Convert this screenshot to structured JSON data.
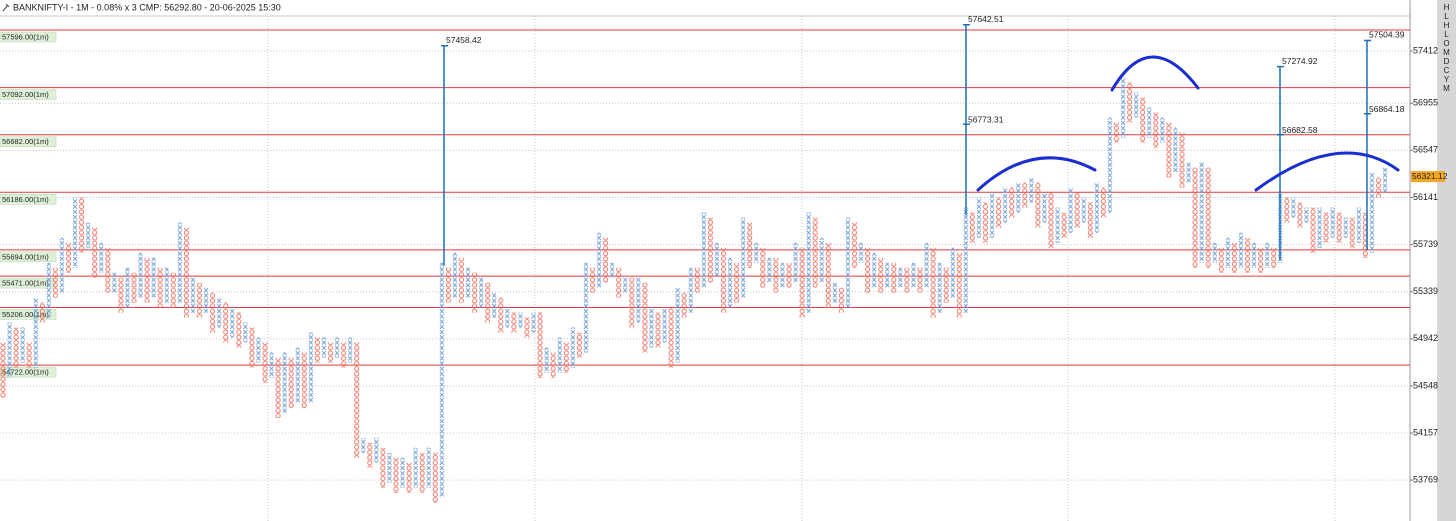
{
  "chart_data": {
    "type": "point_and_figure",
    "title": "BANKNIFTY-I - 1M - 0.08% x 3 CMP: 56292.80 - 20-06-2025 15:30",
    "log_scale": true,
    "ylim": [
      53434,
      57755
    ],
    "yticks": [
      57412,
      56955,
      56547,
      56141,
      55739,
      55339,
      54942,
      54548,
      54157,
      53769
    ],
    "grid": true,
    "x_color": "#6f9fd8",
    "o_color": "#f26b5b",
    "level_color": "#e23a3a",
    "count_color": "#1b6fb5",
    "current_price": 56321.12,
    "current_color": "#f5a623",
    "side_letters": [
      "H",
      "L",
      "H",
      "L",
      "O",
      "M",
      "D",
      "C",
      "Y",
      "M"
    ],
    "levels": [
      {
        "value": 57596,
        "label": "57596.00(1m)"
      },
      {
        "value": 57092,
        "label": "57092.00(1m)"
      },
      {
        "value": 56682,
        "label": "56682.00(1m)"
      },
      {
        "value": 56186,
        "label": "56186.00(1m)"
      },
      {
        "value": 55694,
        "label": "55694.00(1m)"
      },
      {
        "value": 55471,
        "label": "55471.00(1m)"
      },
      {
        "value": 55206,
        "label": "55206.00(1m)"
      },
      {
        "value": 54722,
        "label": "54722.00(1m)"
      }
    ],
    "counts": [
      {
        "from": 55562,
        "targets": [
          57458.42
        ]
      },
      {
        "from": 55990,
        "targets": [
          57642.51,
          56773.31
        ]
      },
      {
        "from": 55605,
        "targets": [
          57274.92,
          56682.58
        ]
      },
      {
        "from": 55690,
        "targets": [
          57504.39,
          56864.18
        ]
      }
    ],
    "columns": [
      [
        "o",
        54470,
        54890
      ],
      [
        "x",
        54638,
        55058
      ],
      [
        "o",
        54722,
        55016
      ],
      [
        "x",
        54764,
        55016
      ],
      [
        "o",
        54722,
        54890
      ],
      [
        "x",
        54722,
        55268
      ],
      [
        "o",
        55100,
        55226
      ],
      [
        "x",
        55142,
        55562
      ],
      [
        "o",
        55310,
        55520
      ],
      [
        "x",
        55352,
        55775
      ],
      [
        "o",
        55520,
        55732
      ],
      [
        "x",
        55562,
        56119
      ],
      [
        "o",
        55690,
        56119
      ],
      [
        "x",
        55732,
        55904
      ],
      [
        "o",
        55478,
        55861
      ],
      [
        "x",
        55520,
        55732
      ],
      [
        "o",
        55352,
        55690
      ],
      [
        "x",
        55352,
        55478
      ],
      [
        "o",
        55184,
        55436
      ],
      [
        "x",
        55226,
        55520
      ],
      [
        "o",
        55268,
        55478
      ],
      [
        "x",
        55310,
        55647
      ],
      [
        "o",
        55268,
        55605
      ],
      [
        "x",
        55310,
        55605
      ],
      [
        "o",
        55226,
        55520
      ],
      [
        "x",
        55268,
        55520
      ],
      [
        "o",
        55226,
        55478
      ],
      [
        "x",
        55268,
        55904
      ],
      [
        "o",
        55142,
        55861
      ],
      [
        "x",
        55184,
        55436
      ],
      [
        "o",
        55142,
        55394
      ],
      [
        "x",
        55184,
        55352
      ],
      [
        "o",
        55016,
        55310
      ],
      [
        "x",
        55058,
        55268
      ],
      [
        "o",
        54932,
        55226
      ],
      [
        "x",
        54974,
        55184
      ],
      [
        "o",
        54890,
        55142
      ],
      [
        "x",
        54932,
        55058
      ],
      [
        "o",
        54722,
        55016
      ],
      [
        "x",
        54764,
        54932
      ],
      [
        "o",
        54596,
        54890
      ],
      [
        "x",
        54638,
        54806
      ],
      [
        "o",
        54302,
        54764
      ],
      [
        "x",
        54344,
        54806
      ],
      [
        "o",
        54386,
        54764
      ],
      [
        "x",
        54428,
        54848
      ],
      [
        "o",
        54386,
        54806
      ],
      [
        "x",
        54428,
        54974
      ],
      [
        "o",
        54764,
        54932
      ],
      [
        "x",
        54806,
        54932
      ],
      [
        "o",
        54764,
        54890
      ],
      [
        "x",
        54806,
        54932
      ],
      [
        "o",
        54722,
        54890
      ],
      [
        "x",
        54764,
        54932
      ],
      [
        "o",
        53973,
        54890
      ],
      [
        "x",
        54014,
        54096
      ],
      [
        "o",
        53891,
        54055
      ],
      [
        "x",
        53932,
        54096
      ],
      [
        "o",
        53727,
        54014
      ],
      [
        "x",
        53768,
        53973
      ],
      [
        "o",
        53686,
        53932
      ],
      [
        "x",
        53727,
        53932
      ],
      [
        "o",
        53686,
        53891
      ],
      [
        "x",
        53727,
        54014
      ],
      [
        "o",
        53686,
        53973
      ],
      [
        "x",
        53727,
        54014
      ],
      [
        "o",
        53604,
        53973
      ],
      [
        "x",
        53645,
        55562
      ],
      [
        "o",
        55268,
        55520
      ],
      [
        "x",
        55310,
        55647
      ],
      [
        "o",
        55268,
        55605
      ],
      [
        "x",
        55310,
        55520
      ],
      [
        "o",
        55184,
        55478
      ],
      [
        "x",
        55226,
        55436
      ],
      [
        "o",
        55100,
        55394
      ],
      [
        "x",
        55142,
        55310
      ],
      [
        "o",
        55016,
        55268
      ],
      [
        "x",
        55058,
        55184
      ],
      [
        "o",
        55016,
        55142
      ],
      [
        "x",
        55058,
        55142
      ],
      [
        "o",
        54974,
        55100
      ],
      [
        "x",
        55016,
        55142
      ],
      [
        "o",
        54638,
        55142
      ],
      [
        "x",
        54680,
        54848
      ],
      [
        "o",
        54638,
        54806
      ],
      [
        "x",
        54680,
        54932
      ],
      [
        "o",
        54680,
        54890
      ],
      [
        "x",
        54722,
        55016
      ],
      [
        "o",
        54806,
        54974
      ],
      [
        "x",
        54848,
        55562
      ],
      [
        "o",
        55352,
        55520
      ],
      [
        "x",
        55394,
        55818
      ],
      [
        "o",
        55436,
        55775
      ],
      [
        "x",
        55478,
        55562
      ],
      [
        "o",
        55310,
        55520
      ],
      [
        "x",
        55352,
        55436
      ],
      [
        "o",
        55058,
        55436
      ],
      [
        "x",
        55100,
        55436
      ],
      [
        "o",
        54848,
        55394
      ],
      [
        "x",
        54890,
        55184
      ],
      [
        "o",
        54890,
        55142
      ],
      [
        "x",
        54932,
        55184
      ],
      [
        "o",
        54722,
        55184
      ],
      [
        "x",
        54764,
        55352
      ],
      [
        "o",
        55142,
        55310
      ],
      [
        "x",
        55184,
        55520
      ],
      [
        "o",
        55352,
        55520
      ],
      [
        "x",
        55394,
        55990
      ],
      [
        "o",
        55436,
        55947
      ],
      [
        "x",
        55478,
        55732
      ],
      [
        "o",
        55184,
        55690
      ],
      [
        "x",
        55226,
        55605
      ],
      [
        "o",
        55268,
        55562
      ],
      [
        "x",
        55310,
        55947
      ],
      [
        "o",
        55562,
        55904
      ],
      [
        "x",
        55605,
        55732
      ],
      [
        "o",
        55394,
        55690
      ],
      [
        "x",
        55436,
        55605
      ],
      [
        "o",
        55352,
        55605
      ],
      [
        "x",
        55394,
        55562
      ],
      [
        "o",
        55394,
        55562
      ],
      [
        "x",
        55436,
        55732
      ],
      [
        "o",
        55142,
        55690
      ],
      [
        "x",
        55184,
        55990
      ],
      [
        "o",
        55394,
        55947
      ],
      [
        "x",
        55436,
        55775
      ],
      [
        "o",
        55226,
        55732
      ],
      [
        "x",
        55268,
        55394
      ],
      [
        "o",
        55184,
        55352
      ],
      [
        "x",
        55226,
        55947
      ],
      [
        "o",
        55562,
        55904
      ],
      [
        "x",
        55605,
        55732
      ],
      [
        "o",
        55352,
        55690
      ],
      [
        "x",
        55394,
        55647
      ],
      [
        "o",
        55352,
        55605
      ],
      [
        "x",
        55394,
        55562
      ],
      [
        "o",
        55352,
        55562
      ],
      [
        "x",
        55394,
        55520
      ],
      [
        "o",
        55352,
        55520
      ],
      [
        "x",
        55394,
        55562
      ],
      [
        "o",
        55352,
        55520
      ],
      [
        "x",
        55394,
        55732
      ],
      [
        "o",
        55142,
        55690
      ],
      [
        "x",
        55184,
        55562
      ],
      [
        "o",
        55268,
        55520
      ],
      [
        "x",
        55310,
        55690
      ],
      [
        "o",
        55142,
        55647
      ],
      [
        "x",
        55184,
        56033
      ],
      [
        "o",
        55775,
        55990
      ],
      [
        "x",
        55818,
        56119
      ],
      [
        "o",
        55775,
        56076
      ],
      [
        "x",
        55818,
        56162
      ],
      [
        "o",
        55904,
        56119
      ],
      [
        "x",
        55947,
        56205
      ],
      [
        "o",
        55990,
        56205
      ],
      [
        "x",
        56033,
        56248
      ],
      [
        "o",
        56076,
        56248
      ],
      [
        "x",
        56119,
        56291
      ],
      [
        "o",
        55904,
        56248
      ],
      [
        "x",
        55947,
        56162
      ],
      [
        "o",
        55732,
        56162
      ],
      [
        "x",
        55775,
        56033
      ],
      [
        "o",
        55818,
        55990
      ],
      [
        "x",
        55861,
        56205
      ],
      [
        "o",
        55904,
        56162
      ],
      [
        "x",
        55947,
        56119
      ],
      [
        "o",
        55818,
        56076
      ],
      [
        "x",
        55861,
        56248
      ],
      [
        "o",
        55990,
        56205
      ],
      [
        "x",
        56033,
        56809
      ],
      [
        "o",
        56636,
        56766
      ],
      [
        "x",
        56679,
        57158
      ],
      [
        "o",
        56809,
        57114
      ],
      [
        "x",
        56852,
        57026
      ],
      [
        "o",
        56636,
        56983
      ],
      [
        "x",
        56679,
        56896
      ],
      [
        "o",
        56592,
        56852
      ],
      [
        "x",
        56636,
        56809
      ],
      [
        "o",
        56334,
        56766
      ],
      [
        "x",
        56377,
        56722
      ],
      [
        "o",
        56248,
        56679
      ],
      [
        "x",
        56291,
        56420
      ],
      [
        "o",
        55562,
        56377
      ],
      [
        "x",
        55605,
        56420
      ],
      [
        "o",
        55562,
        56377
      ],
      [
        "x",
        55605,
        55732
      ],
      [
        "o",
        55520,
        55690
      ],
      [
        "x",
        55562,
        55775
      ],
      [
        "o",
        55520,
        55732
      ],
      [
        "x",
        55562,
        55818
      ],
      [
        "o",
        55520,
        55775
      ],
      [
        "x",
        55562,
        55732
      ],
      [
        "o",
        55520,
        55690
      ],
      [
        "x",
        55562,
        55732
      ],
      [
        "o",
        55562,
        55690
      ],
      [
        "x",
        55605,
        56162
      ],
      [
        "o",
        55947,
        56119
      ],
      [
        "x",
        55990,
        56119
      ],
      [
        "o",
        55904,
        56076
      ],
      [
        "x",
        55947,
        56033
      ],
      [
        "o",
        55690,
        56033
      ],
      [
        "x",
        55732,
        56033
      ],
      [
        "o",
        55775,
        55990
      ],
      [
        "x",
        55818,
        56033
      ],
      [
        "o",
        55775,
        55990
      ],
      [
        "x",
        55818,
        55947
      ],
      [
        "o",
        55732,
        55947
      ],
      [
        "x",
        55775,
        56033
      ],
      [
        "o",
        55647,
        55990
      ],
      [
        "x",
        55690,
        56334
      ],
      [
        "o",
        56162,
        56291
      ],
      [
        "x",
        56205,
        56377
      ]
    ]
  }
}
